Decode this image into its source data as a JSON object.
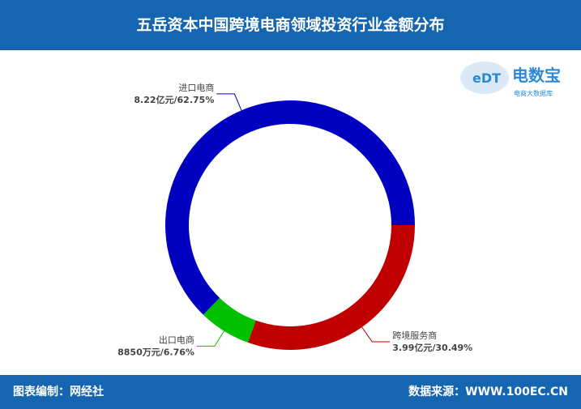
{
  "header": {
    "title": "五岳资本中国跨境电商领域投资行业金额分布"
  },
  "logo": {
    "mark": "eDT",
    "name": "电数宝",
    "tagline": "电商大数据库"
  },
  "chart_data": {
    "type": "donut",
    "categories": [
      "跨境服务商",
      "出口电商",
      "进口电商"
    ],
    "values": [
      30.49,
      6.76,
      62.75
    ],
    "value_labels": [
      "3.99亿元/30.49%",
      "8850万元/6.76%",
      "8.22亿元/62.75%"
    ],
    "colors": [
      "#c00000",
      "#00c000",
      "#0000c0"
    ]
  },
  "footer": {
    "left": "图表编制：网经社",
    "right": "数据来源：WWW.100EC.CN"
  }
}
